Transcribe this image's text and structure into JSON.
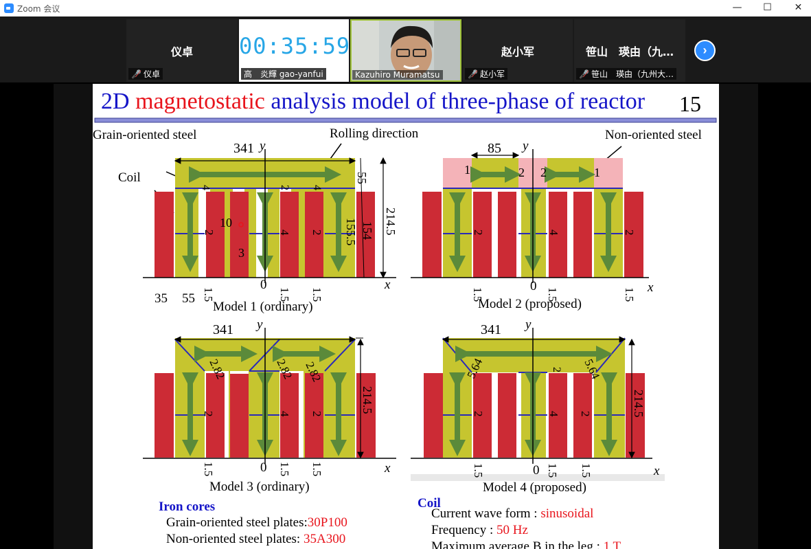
{
  "window": {
    "title": "Zoom 会议",
    "minimize": "—",
    "maximize": "☐",
    "close": "✕"
  },
  "participants": [
    {
      "name": "仪卓",
      "label": "仪卓",
      "muted": true
    },
    {
      "name": "",
      "label": "高　炎輝 gao-yanfui",
      "timer": "00:35:59"
    },
    {
      "name": "",
      "label": "Kazuhiro Muramatsu"
    },
    {
      "name": "赵小军",
      "label": "赵小军",
      "muted": true
    },
    {
      "name": "笹山　瑛由（九…",
      "label": "笹山　瑛由（九州大…",
      "muted": true
    }
  ],
  "slide": {
    "title_part1": "2D ",
    "title_part2": "magnetostatic",
    "title_part3": " analysis model of three-phase of reactor",
    "page_number": "15",
    "label_grain": "Grain-oriented steel",
    "label_rolling": "Rolling direction",
    "label_nonoriented": "Non-oriented steel",
    "label_coil": "Coil",
    "model1_caption": "Model 1 (ordinary)",
    "model2_caption": "Model 2 (proposed)",
    "model3_caption": "Model 3 (ordinary)",
    "model4_caption": "Model 4 (proposed)",
    "dims": {
      "d341": "341",
      "d55": "55",
      "d214": "214.5",
      "d155": "155.5",
      "d154": "154",
      "d35": "35",
      "d55b": "55",
      "d10": "10",
      "d3": "3",
      "d85": "85",
      "d1": "1",
      "d2": "2",
      "d4": "4",
      "d15": "1.5",
      "d282": "2.82",
      "d564": "5.64",
      "zero": "0",
      "x": "x",
      "y": "y"
    },
    "iron_cores_heading": "Iron cores",
    "grain_plates_label": "Grain-oriented steel plates:",
    "grain_plates_value": "30P100",
    "non_plates_label": "Non-oriented steel plates: ",
    "non_plates_value": "35A300",
    "coil_heading": "Coil",
    "current_label": "Current wave form : ",
    "current_value": "sinusoidal",
    "freq_label": "Frequency : ",
    "freq_value": "50 Hz",
    "bmax_label": "Maximum average B in the leg : ",
    "bmax_value": "1 T"
  },
  "colors": {
    "title_blue": "#1515c8",
    "title_red": "#e8141c",
    "core_yellow": "#c6c52f",
    "coil_red": "#cc2b35",
    "arrow_green": "#5b8a3a",
    "pink": "#f4b3b8",
    "zoom_blue": "#2d8cff"
  }
}
